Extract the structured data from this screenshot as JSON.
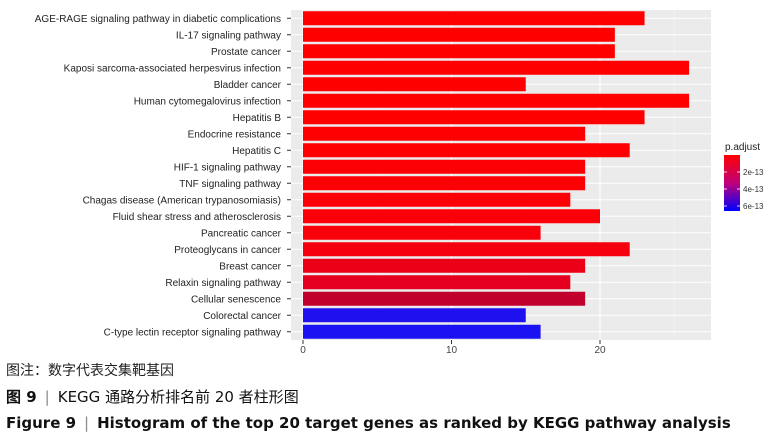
{
  "chart_data": {
    "type": "bar",
    "orientation": "horizontal",
    "categories": [
      "AGE-RAGE signaling pathway in diabetic complications",
      "IL-17 signaling pathway",
      "Prostate cancer",
      "Kaposi sarcoma-associated herpesvirus infection",
      "Bladder cancer",
      "Human cytomegalovirus infection",
      "Hepatitis B",
      "Endocrine resistance",
      "Hepatitis C",
      "HIF-1 signaling pathway",
      "TNF signaling pathway",
      "Chagas disease (American trypanosomiasis)",
      "Fluid shear stress and atherosclerosis",
      "Pancreatic cancer",
      "Proteoglycans in cancer",
      "Breast cancer",
      "Relaxin signaling pathway",
      "Cellular senescence",
      "Colorectal cancer",
      "C-type lectin receptor signaling pathway"
    ],
    "values": [
      23,
      21,
      21,
      26,
      15,
      26,
      23,
      19,
      22,
      19,
      19,
      18,
      20,
      16,
      22,
      19,
      18,
      19,
      15,
      16
    ],
    "colors": [
      "#ff0000",
      "#ff0000",
      "#ff0000",
      "#ff0000",
      "#ff0000",
      "#ff0000",
      "#ff0000",
      "#fe0002",
      "#fe0002",
      "#fd0004",
      "#fd0004",
      "#fc0006",
      "#fb0008",
      "#fa000b",
      "#f5000f",
      "#ec0018",
      "#e6001f",
      "#c2002e",
      "#1f10ef",
      "#1a12f2"
    ],
    "xlim": [
      0,
      27
    ],
    "xticks": [
      0,
      10,
      20
    ],
    "grid": true,
    "legend": {
      "title": "p.adjust",
      "position": "right",
      "labels": [
        "2e-13",
        "4e-13",
        "6e-13"
      ],
      "gradient": [
        "#ff0000",
        "#c0007a",
        "#0000ff"
      ]
    },
    "background": "#ebebeb"
  },
  "caption": {
    "note": "图注：数字代表交集靶基因",
    "cn_figure": "图 9",
    "cn_title": "KEGG 通路分析排名前 20 者柱形图",
    "en_figure": "Figure 9",
    "en_title": "Histogram  of the top 20 target genes as ranked by KEGG pathway analysis"
  }
}
